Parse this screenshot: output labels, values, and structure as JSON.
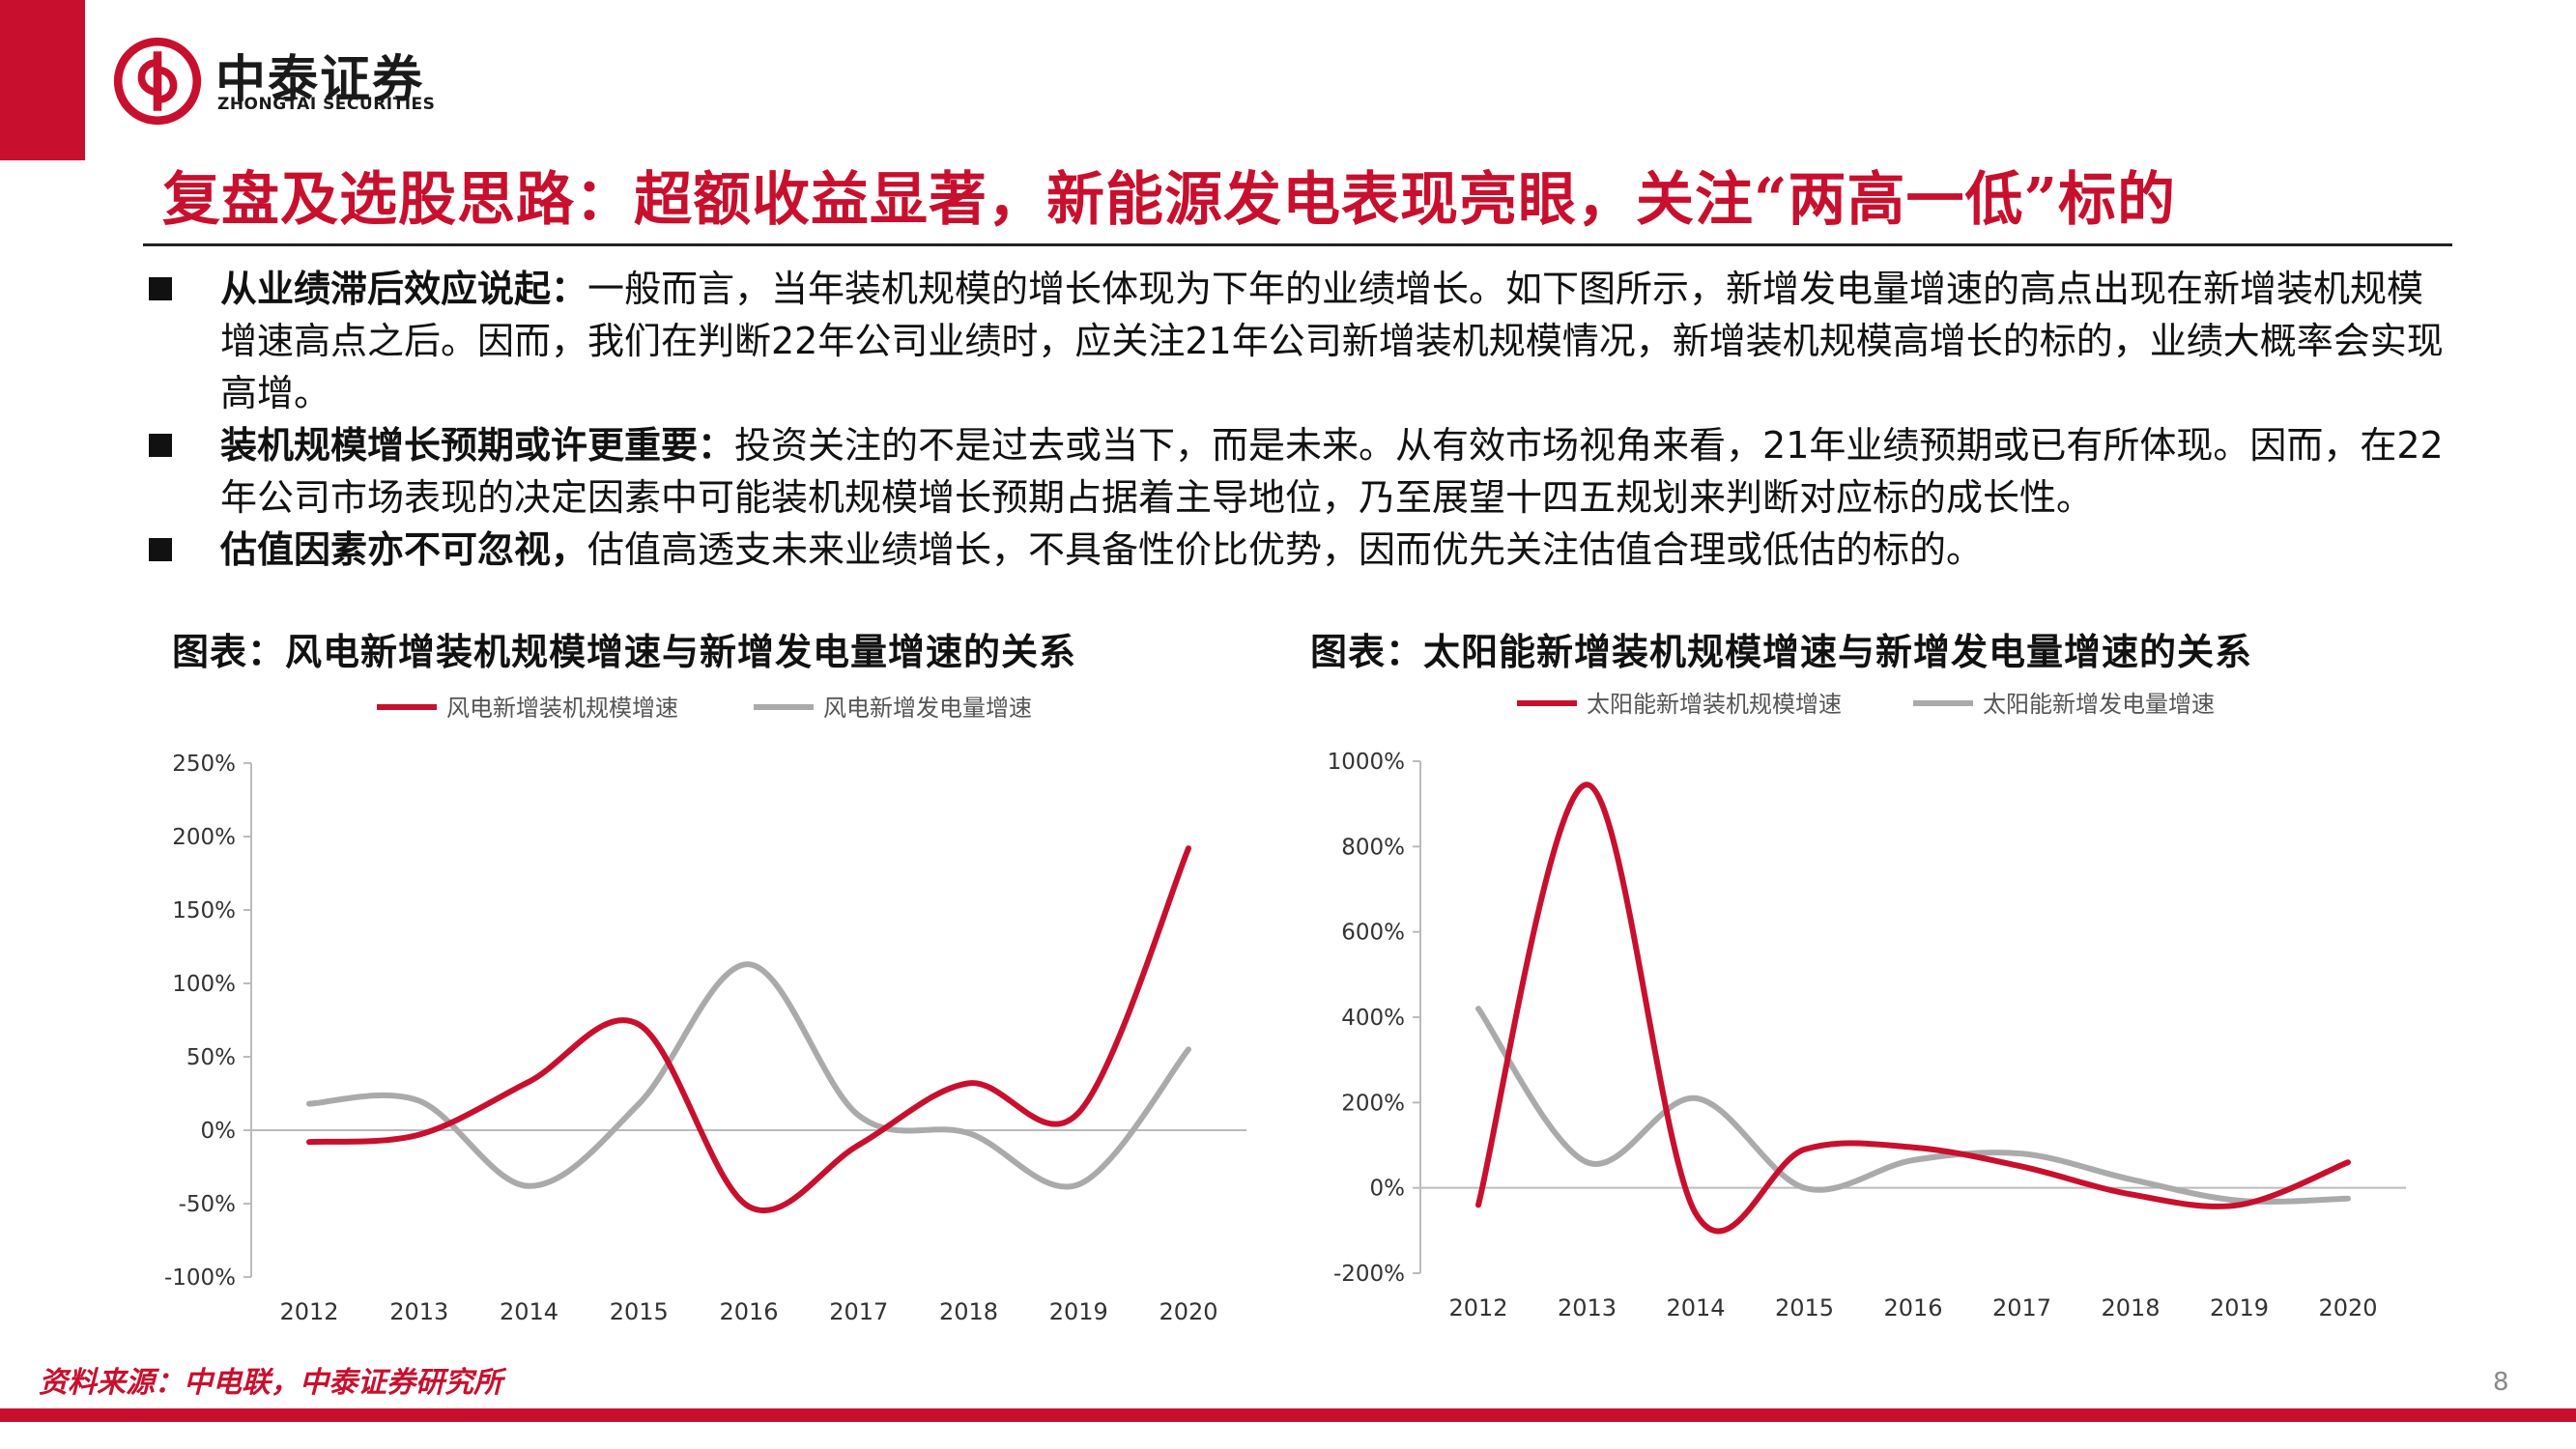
{
  "brand": {
    "name_cn": "中泰证券",
    "name_en": "ZHONGTAI SECURITIES",
    "primary_color": "#c8102e"
  },
  "page": {
    "title": "复盘及选股思路：超额收益显著，新能源发电表现亮眼，关注“两高一低”标的",
    "source": "资料来源：中电联，中泰证券研究所",
    "number": "8"
  },
  "bullets": [
    {
      "head": "从业绩滞后效应说起：",
      "text": "一般而言，当年装机规模的增长体现为下年的业绩增长。如下图所示，新增发电量增速的高点出现在新增装机规模增速高点之后。因而，我们在判断22年公司业绩时，应关注21年公司新增装机规模情况，新增装机规模高增长的标的，业绩大概率会实现高增。"
    },
    {
      "head": "装机规模增长预期或许更重要：",
      "text": "投资关注的不是过去或当下，而是未来。从有效市场视角来看，21年业绩预期或已有所体现。因而，在22年公司市场表现的决定因素中可能装机规模增长预期占据着主导地位，乃至展望十四五规划来判断对应标的成长性。"
    },
    {
      "head": "估值因素亦不可忽视，",
      "text": "估值高透支未来业绩增长，不具备性价比优势，因而优先关注估值合理或低估的标的。"
    }
  ],
  "chart_data": [
    {
      "type": "line",
      "title": "图表：风电新增装机规模增速与新增发电量增速的关系",
      "categories": [
        "2012",
        "2013",
        "2014",
        "2015",
        "2016",
        "2017",
        "2018",
        "2019",
        "2020"
      ],
      "series": [
        {
          "name": "风电新增装机规模增速",
          "color": "#c8102e",
          "values": [
            -8,
            -3,
            33,
            72,
            -52,
            -10,
            32,
            12,
            192
          ]
        },
        {
          "name": "风电新增发电量增速",
          "color": "#aaaaaa",
          "values": [
            18,
            20,
            -38,
            18,
            113,
            10,
            -2,
            -37,
            55
          ]
        }
      ],
      "yticks": [
        "250%",
        "200%",
        "150%",
        "100%",
        "50%",
        "0%",
        "-50%",
        "-100%"
      ],
      "ylim": [
        -100,
        250
      ],
      "legend": "top"
    },
    {
      "type": "line",
      "title": "图表：太阳能新增装机规模增速与新增发电量增速的关系",
      "categories": [
        "2012",
        "2013",
        "2014",
        "2015",
        "2016",
        "2017",
        "2018",
        "2019",
        "2020"
      ],
      "series": [
        {
          "name": "太阳能新增装机规模增速",
          "color": "#c8102e",
          "values": [
            -40,
            945,
            -60,
            90,
            95,
            50,
            -15,
            -40,
            60
          ]
        },
        {
          "name": "太阳能新增发电量增速",
          "color": "#aaaaaa",
          "values": [
            420,
            60,
            210,
            0,
            65,
            80,
            20,
            -30,
            -25
          ]
        }
      ],
      "yticks": [
        "1000%",
        "800%",
        "600%",
        "400%",
        "200%",
        "0%",
        "-200%"
      ],
      "ylim": [
        -200,
        1000
      ],
      "legend": "top"
    }
  ]
}
